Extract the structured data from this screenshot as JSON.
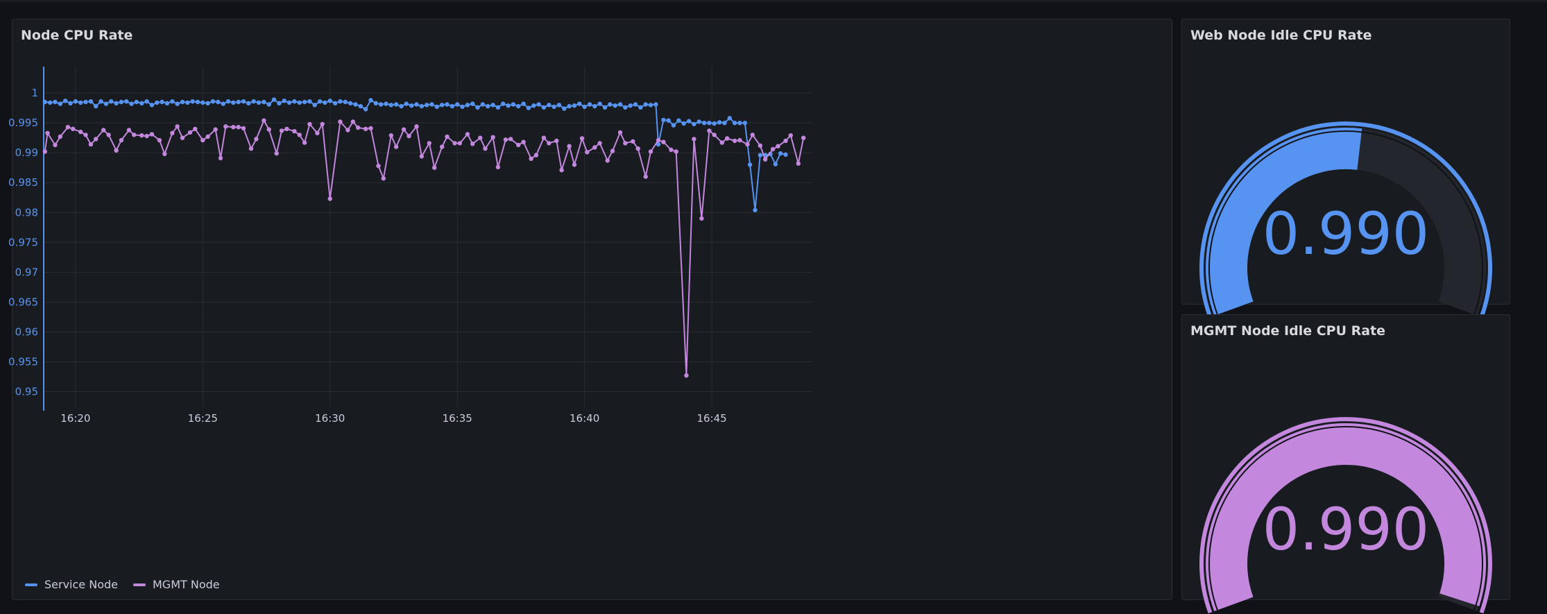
{
  "panels": {
    "timeseries_title": "Node CPU Rate",
    "gauge_web_title": "Web Node Idle CPU Rate",
    "gauge_mgmt_title": "MGMT Node Idle CPU Rate"
  },
  "gauges": {
    "web": {
      "value": 0.99,
      "display": "0.990",
      "color": "#5794f2",
      "min": 0,
      "max": 1,
      "threshold_fill_fraction": 0.53
    },
    "mgmt": {
      "value": 0.99,
      "display": "0.990",
      "color": "#c387de",
      "min": 0,
      "max": 1
    }
  },
  "legend": {
    "service_label": "Service Node",
    "mgmt_label": "MGMT Node"
  },
  "colors": {
    "service": "#5794f2",
    "mgmt": "#c387de",
    "background": "#111217",
    "panel": "#181b1f"
  },
  "chart_data": {
    "type": "line",
    "title": "Node CPU Rate",
    "xlabel": "",
    "ylabel": "",
    "ylim": [
      0.9475,
      1.0035
    ],
    "xlim": [
      18.75,
      48.95
    ],
    "x_ticks": [
      {
        "value": 20,
        "label": "16:20"
      },
      {
        "value": 25,
        "label": "16:25"
      },
      {
        "value": 30,
        "label": "16:30"
      },
      {
        "value": 35,
        "label": "16:35"
      },
      {
        "value": 40,
        "label": "16:40"
      },
      {
        "value": 45,
        "label": "16:45"
      }
    ],
    "y_ticks": [
      1,
      0.995,
      0.99,
      0.985,
      0.98,
      0.975,
      0.97,
      0.965,
      0.96,
      0.955,
      0.95
    ],
    "y_tick_labels": [
      "1",
      "0.995",
      "0.99",
      "0.985",
      "0.98",
      "0.975",
      "0.97",
      "0.965",
      "0.96",
      "0.955",
      "0.95"
    ],
    "grid": true,
    "legend_position": "bottom-left",
    "series": [
      {
        "name": "Service Node",
        "points": [
          [
            18.8,
            0.9985
          ],
          [
            19.0,
            0.9984
          ],
          [
            19.2,
            0.9985
          ],
          [
            19.4,
            0.9982
          ],
          [
            19.6,
            0.9987
          ],
          [
            19.8,
            0.9983
          ],
          [
            20.0,
            0.9986
          ],
          [
            20.2,
            0.9984
          ],
          [
            20.4,
            0.9985
          ],
          [
            20.6,
            0.9986
          ],
          [
            20.8,
            0.9978
          ],
          [
            21.0,
            0.9986
          ],
          [
            21.2,
            0.9982
          ],
          [
            21.4,
            0.9986
          ],
          [
            21.6,
            0.9983
          ],
          [
            21.8,
            0.9985
          ],
          [
            22.0,
            0.9986
          ],
          [
            22.2,
            0.9982
          ],
          [
            22.4,
            0.9985
          ],
          [
            22.6,
            0.9983
          ],
          [
            22.8,
            0.9986
          ],
          [
            23.0,
            0.998
          ],
          [
            23.2,
            0.9984
          ],
          [
            23.4,
            0.9985
          ],
          [
            23.6,
            0.9983
          ],
          [
            23.8,
            0.9986
          ],
          [
            24.0,
            0.9982
          ],
          [
            24.2,
            0.9985
          ],
          [
            24.4,
            0.9984
          ],
          [
            24.6,
            0.9986
          ],
          [
            24.8,
            0.9985
          ],
          [
            25.0,
            0.9984
          ],
          [
            25.2,
            0.9983
          ],
          [
            25.4,
            0.9986
          ],
          [
            25.6,
            0.9985
          ],
          [
            25.8,
            0.9982
          ],
          [
            26.0,
            0.9986
          ],
          [
            26.2,
            0.9984
          ],
          [
            26.4,
            0.9985
          ],
          [
            26.6,
            0.9986
          ],
          [
            26.8,
            0.9983
          ],
          [
            27.0,
            0.9986
          ],
          [
            27.2,
            0.9984
          ],
          [
            27.4,
            0.9985
          ],
          [
            27.6,
            0.9981
          ],
          [
            27.8,
            0.9989
          ],
          [
            28.0,
            0.9983
          ],
          [
            28.2,
            0.9987
          ],
          [
            28.4,
            0.9984
          ],
          [
            28.6,
            0.9986
          ],
          [
            28.8,
            0.9984
          ],
          [
            29.0,
            0.9985
          ],
          [
            29.2,
            0.9986
          ],
          [
            29.4,
            0.998
          ],
          [
            29.6,
            0.9986
          ],
          [
            29.8,
            0.9984
          ],
          [
            30.0,
            0.9987
          ],
          [
            30.2,
            0.9983
          ],
          [
            30.4,
            0.9986
          ],
          [
            30.6,
            0.9985
          ],
          [
            30.8,
            0.9983
          ],
          [
            31.0,
            0.9981
          ],
          [
            31.2,
            0.9978
          ],
          [
            31.4,
            0.9973
          ],
          [
            31.6,
            0.9988
          ],
          [
            31.8,
            0.9983
          ],
          [
            32.0,
            0.9981
          ],
          [
            32.2,
            0.9982
          ],
          [
            32.4,
            0.998
          ],
          [
            32.6,
            0.9981
          ],
          [
            32.8,
            0.9978
          ],
          [
            33.0,
            0.9982
          ],
          [
            33.2,
            0.9979
          ],
          [
            33.4,
            0.9981
          ],
          [
            33.6,
            0.9978
          ],
          [
            33.8,
            0.998
          ],
          [
            34.0,
            0.9981
          ],
          [
            34.2,
            0.9977
          ],
          [
            34.4,
            0.998
          ],
          [
            34.6,
            0.9981
          ],
          [
            34.8,
            0.9978
          ],
          [
            35.0,
            0.9981
          ],
          [
            35.2,
            0.9977
          ],
          [
            35.4,
            0.998
          ],
          [
            35.6,
            0.9982
          ],
          [
            35.8,
            0.9976
          ],
          [
            36.0,
            0.9981
          ],
          [
            36.2,
            0.9978
          ],
          [
            36.4,
            0.998
          ],
          [
            36.6,
            0.9976
          ],
          [
            36.8,
            0.9982
          ],
          [
            37.0,
            0.9979
          ],
          [
            37.2,
            0.9981
          ],
          [
            37.4,
            0.9978
          ],
          [
            37.6,
            0.9982
          ],
          [
            37.8,
            0.9975
          ],
          [
            38.0,
            0.9979
          ],
          [
            38.2,
            0.9981
          ],
          [
            38.4,
            0.9976
          ],
          [
            38.6,
            0.998
          ],
          [
            38.8,
            0.9977
          ],
          [
            39.0,
            0.998
          ],
          [
            39.2,
            0.9974
          ],
          [
            39.4,
            0.9978
          ],
          [
            39.6,
            0.9979
          ],
          [
            39.8,
            0.9982
          ],
          [
            40.0,
            0.9977
          ],
          [
            40.2,
            0.9981
          ],
          [
            40.4,
            0.9978
          ],
          [
            40.6,
            0.9982
          ],
          [
            40.8,
            0.9976
          ],
          [
            41.0,
            0.9981
          ],
          [
            41.2,
            0.9979
          ],
          [
            41.4,
            0.9981
          ],
          [
            41.6,
            0.9976
          ],
          [
            41.8,
            0.9979
          ],
          [
            42.0,
            0.9981
          ],
          [
            42.2,
            0.9976
          ],
          [
            42.4,
            0.9981
          ],
          [
            42.6,
            0.998
          ],
          [
            42.8,
            0.9981
          ],
          [
            42.9,
            0.9914
          ],
          [
            43.1,
            0.9955
          ],
          [
            43.3,
            0.9954
          ],
          [
            43.5,
            0.9946
          ],
          [
            43.7,
            0.9954
          ],
          [
            43.9,
            0.9949
          ],
          [
            44.1,
            0.9953
          ],
          [
            44.3,
            0.9948
          ],
          [
            44.5,
            0.9952
          ],
          [
            44.7,
            0.995
          ],
          [
            44.9,
            0.995
          ],
          [
            45.1,
            0.9949
          ],
          [
            45.3,
            0.9951
          ],
          [
            45.5,
            0.995
          ],
          [
            45.7,
            0.9958
          ],
          [
            45.9,
            0.995
          ],
          [
            46.1,
            0.995
          ],
          [
            46.3,
            0.995
          ],
          [
            46.5,
            0.988
          ],
          [
            46.7,
            0.9804
          ],
          [
            46.9,
            0.9896
          ],
          [
            47.1,
            0.9896
          ],
          [
            47.3,
            0.9898
          ],
          [
            47.5,
            0.9881
          ],
          [
            47.7,
            0.9899
          ],
          [
            47.9,
            0.9897
          ]
        ]
      },
      {
        "name": "MGMT Node",
        "points": [
          [
            18.8,
            0.9902
          ],
          [
            18.9,
            0.9933
          ],
          [
            19.2,
            0.9913
          ],
          [
            19.4,
            0.9927
          ],
          [
            19.7,
            0.9943
          ],
          [
            19.9,
            0.994
          ],
          [
            20.2,
            0.9935
          ],
          [
            20.4,
            0.993
          ],
          [
            20.6,
            0.9914
          ],
          [
            20.8,
            0.9923
          ],
          [
            21.1,
            0.9938
          ],
          [
            21.3,
            0.993
          ],
          [
            21.6,
            0.9904
          ],
          [
            21.8,
            0.9921
          ],
          [
            22.1,
            0.9938
          ],
          [
            22.3,
            0.993
          ],
          [
            22.6,
            0.9929
          ],
          [
            22.8,
            0.9928
          ],
          [
            23.0,
            0.9931
          ],
          [
            23.3,
            0.9921
          ],
          [
            23.5,
            0.9898
          ],
          [
            23.8,
            0.9933
          ],
          [
            24.0,
            0.9944
          ],
          [
            24.2,
            0.9925
          ],
          [
            24.5,
            0.9934
          ],
          [
            24.7,
            0.994
          ],
          [
            25.0,
            0.9921
          ],
          [
            25.2,
            0.9927
          ],
          [
            25.5,
            0.9939
          ],
          [
            25.7,
            0.9891
          ],
          [
            25.9,
            0.9944
          ],
          [
            26.2,
            0.9943
          ],
          [
            26.4,
            0.9943
          ],
          [
            26.6,
            0.9941
          ],
          [
            26.9,
            0.9907
          ],
          [
            27.1,
            0.9923
          ],
          [
            27.4,
            0.9954
          ],
          [
            27.6,
            0.9939
          ],
          [
            27.9,
            0.9899
          ],
          [
            28.1,
            0.9937
          ],
          [
            28.3,
            0.994
          ],
          [
            28.6,
            0.9936
          ],
          [
            28.8,
            0.993
          ],
          [
            29.0,
            0.9917
          ],
          [
            29.2,
            0.9948
          ],
          [
            29.5,
            0.9933
          ],
          [
            29.7,
            0.9948
          ],
          [
            30.0,
            0.9823
          ],
          [
            30.4,
            0.9952
          ],
          [
            30.7,
            0.9938
          ],
          [
            30.9,
            0.9952
          ],
          [
            31.1,
            0.9942
          ],
          [
            31.4,
            0.994
          ],
          [
            31.6,
            0.9941
          ],
          [
            31.9,
            0.9878
          ],
          [
            32.1,
            0.9857
          ],
          [
            32.4,
            0.9929
          ],
          [
            32.6,
            0.991
          ],
          [
            32.9,
            0.9939
          ],
          [
            33.1,
            0.9928
          ],
          [
            33.4,
            0.9944
          ],
          [
            33.6,
            0.9894
          ],
          [
            33.9,
            0.9916
          ],
          [
            34.1,
            0.9875
          ],
          [
            34.4,
            0.991
          ],
          [
            34.6,
            0.9927
          ],
          [
            34.9,
            0.9916
          ],
          [
            35.1,
            0.9916
          ],
          [
            35.4,
            0.9931
          ],
          [
            35.6,
            0.9915
          ],
          [
            35.9,
            0.9925
          ],
          [
            36.1,
            0.9907
          ],
          [
            36.4,
            0.9926
          ],
          [
            36.6,
            0.9876
          ],
          [
            36.9,
            0.9922
          ],
          [
            37.1,
            0.9923
          ],
          [
            37.4,
            0.9913
          ],
          [
            37.6,
            0.9918
          ],
          [
            37.9,
            0.989
          ],
          [
            38.1,
            0.9896
          ],
          [
            38.4,
            0.9925
          ],
          [
            38.6,
            0.9916
          ],
          [
            38.9,
            0.992
          ],
          [
            39.1,
            0.9871
          ],
          [
            39.4,
            0.9911
          ],
          [
            39.6,
            0.988
          ],
          [
            39.9,
            0.9924
          ],
          [
            40.1,
            0.9901
          ],
          [
            40.4,
            0.9909
          ],
          [
            40.6,
            0.9916
          ],
          [
            40.9,
            0.9887
          ],
          [
            41.1,
            0.9903
          ],
          [
            41.4,
            0.9934
          ],
          [
            41.6,
            0.9916
          ],
          [
            41.9,
            0.9919
          ],
          [
            42.1,
            0.9907
          ],
          [
            42.4,
            0.986
          ],
          [
            42.6,
            0.9902
          ],
          [
            42.9,
            0.9921
          ],
          [
            43.1,
            0.9918
          ],
          [
            43.4,
            0.9905
          ],
          [
            43.6,
            0.9902
          ],
          [
            44.0,
            0.9527
          ],
          [
            44.3,
            0.9923
          ],
          [
            44.6,
            0.979
          ],
          [
            44.9,
            0.9937
          ],
          [
            45.1,
            0.993
          ],
          [
            45.4,
            0.9917
          ],
          [
            45.6,
            0.9924
          ],
          [
            45.9,
            0.992
          ],
          [
            46.1,
            0.9921
          ],
          [
            46.4,
            0.9914
          ],
          [
            46.6,
            0.993
          ],
          [
            46.9,
            0.9912
          ],
          [
            47.1,
            0.9889
          ],
          [
            47.4,
            0.9906
          ],
          [
            47.6,
            0.9911
          ],
          [
            47.9,
            0.992
          ],
          [
            48.1,
            0.9929
          ],
          [
            48.4,
            0.9882
          ],
          [
            48.6,
            0.9925
          ]
        ]
      }
    ]
  }
}
